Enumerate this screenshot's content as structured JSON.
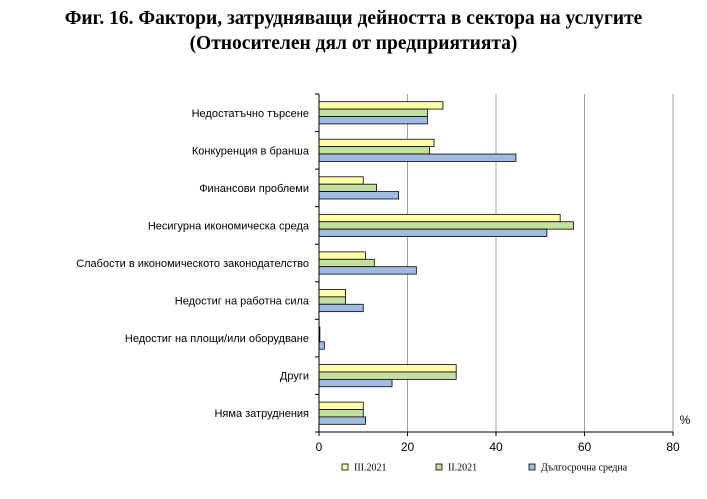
{
  "chart_data": {
    "type": "bar",
    "orientation": "horizontal",
    "title_lines": [
      "Фиг. 16. Фактори, затрудняващи дейността в сектора на услугите",
      "(Относителен дял от предприятията)"
    ],
    "categories": [
      "Недостатъчно търсене",
      "Конкуренция в бранша",
      "Финансови проблеми",
      "Несигурна икономическа среда",
      "Слабости в икономическото законодателство",
      "Недостиг на работна сила",
      "Недостиг на площи/или оборудване",
      "Други",
      "Няма затруднения"
    ],
    "series": [
      {
        "name": "III.2021",
        "color": "#ffffa8",
        "values": [
          28.0,
          26.0,
          10.0,
          54.5,
          10.5,
          6.0,
          0.2,
          31.0,
          10.0
        ]
      },
      {
        "name": "II.2021",
        "color": "#c4e0a0",
        "values": [
          24.5,
          25.0,
          13.0,
          57.5,
          12.5,
          6.0,
          0.2,
          31.0,
          10.0
        ]
      },
      {
        "name": "Дългосрочна средна",
        "color": "#9fbbdf",
        "values": [
          24.5,
          44.5,
          18.0,
          51.5,
          22.0,
          10.0,
          1.2,
          16.5,
          10.5
        ]
      }
    ],
    "x_ticks": [
      "0",
      "20",
      "40",
      "60",
      "80"
    ],
    "xlim": [
      0,
      80
    ],
    "unit_label": "%",
    "grid": "vertical",
    "legend_position": "bottom"
  }
}
